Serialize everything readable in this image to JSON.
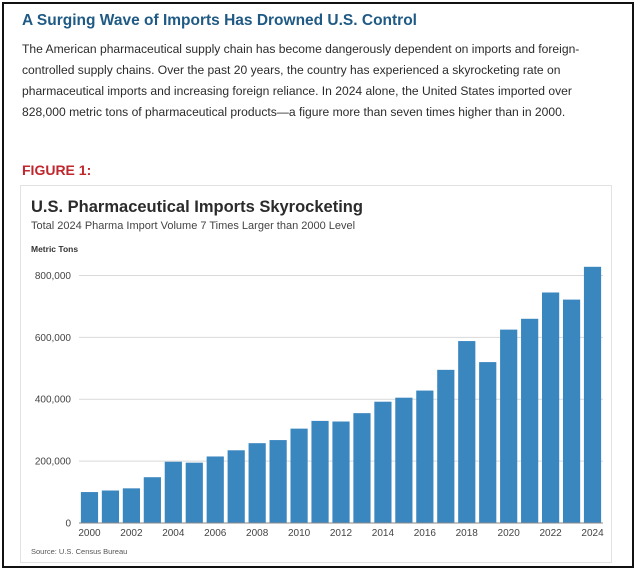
{
  "article": {
    "headline": "A Surging Wave of Imports Has Drowned U.S. Control",
    "intro": "The American pharmaceutical supply chain has become dangerously dependent on imports and foreign-controlled supply chains. Over the past 20 years, the country has experienced a skyrocketing rate on pharmaceutical imports and increasing foreign reliance. In 2024 alone, the United States imported over 828,000 metric tons of pharmaceutical products—a figure more than seven times higher than in 2000.",
    "figure_label": "FIGURE 1:"
  },
  "colors": {
    "headline": "#1f5a85",
    "figure_label": "#c0272d",
    "bar": "#3a86bf",
    "grid": "#d9d9d9"
  },
  "chart_data": {
    "type": "bar",
    "title": "U.S. Pharmaceutical Imports Skyrocketing",
    "subtitle": "Total 2024 Pharma Import Volume 7 Times Larger than 2000 Level",
    "ylabel": "Metric Tons",
    "xlabel": "",
    "source": "Source: U.S. Census Bureau",
    "ylim": [
      0,
      850000
    ],
    "yticks": [
      0,
      200000,
      400000,
      600000,
      800000
    ],
    "ytick_labels": [
      "0",
      "200,000",
      "400,000",
      "600,000",
      "800,000"
    ],
    "grid": true,
    "categories": [
      "2000",
      "2001",
      "2002",
      "2003",
      "2004",
      "2005",
      "2006",
      "2007",
      "2008",
      "2009",
      "2010",
      "2011",
      "2012",
      "2013",
      "2014",
      "2015",
      "2016",
      "2017",
      "2018",
      "2019",
      "2020",
      "2021",
      "2022",
      "2023",
      "2024"
    ],
    "xtick_labels": [
      "2000",
      "",
      "2002",
      "",
      "2004",
      "",
      "2006",
      "",
      "2008",
      "",
      "2010",
      "",
      "2012",
      "",
      "2014",
      "",
      "2016",
      "",
      "2018",
      "",
      "2020",
      "",
      "2022",
      "",
      "2024"
    ],
    "values": [
      100000,
      105000,
      112000,
      148000,
      198000,
      195000,
      215000,
      235000,
      258000,
      268000,
      305000,
      330000,
      328000,
      355000,
      392000,
      405000,
      428000,
      495000,
      588000,
      520000,
      625000,
      660000,
      745000,
      722000,
      828000
    ]
  }
}
